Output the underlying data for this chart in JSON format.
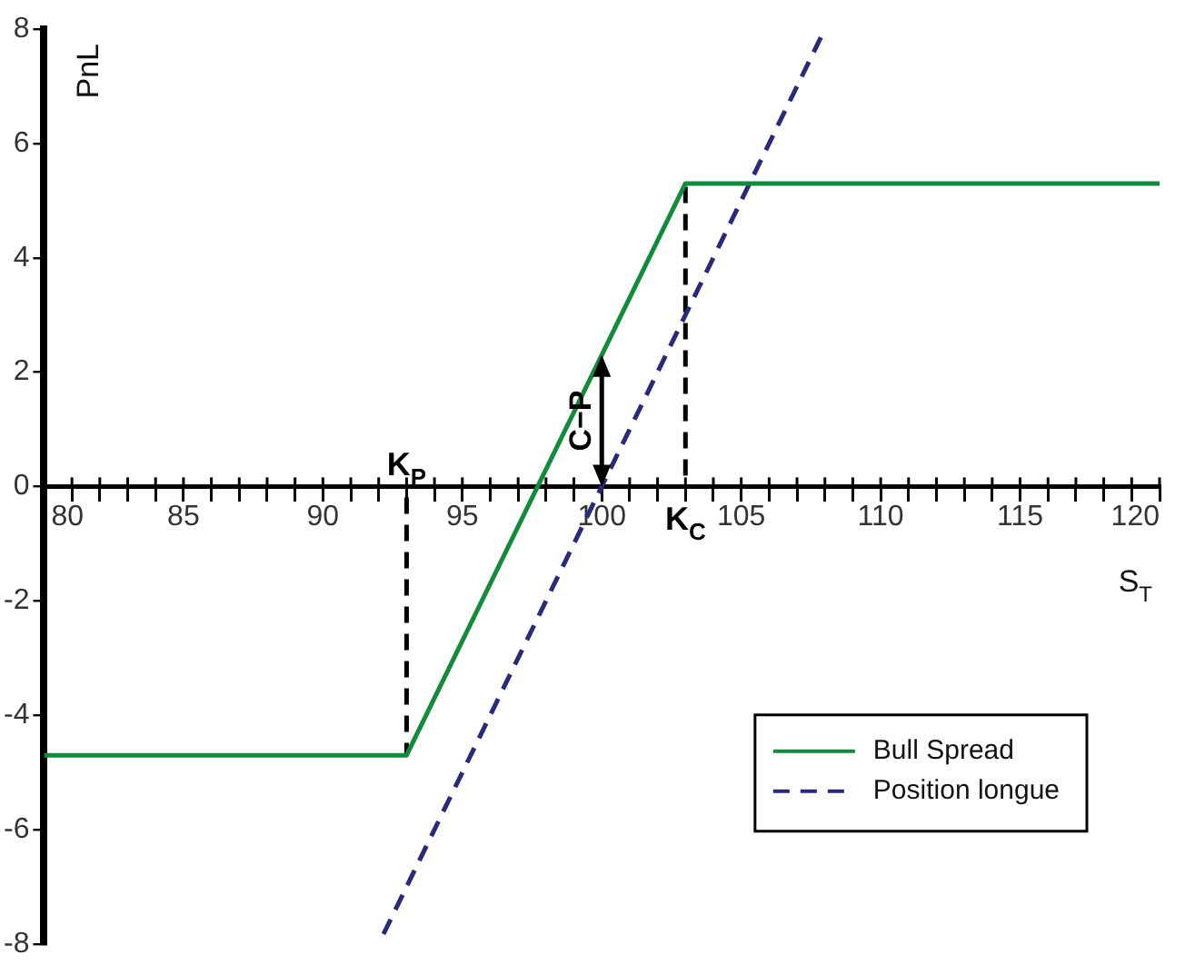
{
  "chart_data": {
    "type": "line",
    "xlabel": "S$_{T}$",
    "ylabel": "PnL",
    "xlim": [
      80,
      120
    ],
    "ylim": [
      -8,
      8
    ],
    "xticks": [
      80,
      {
        "value": 81,
        "label": null
      },
      {
        "value": 82,
        "label": null
      },
      {
        "value": 83,
        "label": null
      },
      {
        "value": 84,
        "label": null
      },
      85,
      {
        "value": 86,
        "label": null
      },
      {
        "value": 87,
        "label": null
      },
      {
        "value": 88,
        "label": null
      },
      {
        "value": 89,
        "label": null
      },
      90,
      {
        "value": 91,
        "label": null
      },
      {
        "value": 92,
        "label": null
      },
      {
        "value": 93,
        "label": null
      },
      {
        "value": 94,
        "label": null
      },
      95,
      {
        "value": 96,
        "label": null
      },
      {
        "value": 97,
        "label": null
      },
      {
        "value": 98,
        "label": null
      },
      {
        "value": 99,
        "label": null
      },
      100,
      {
        "value": 101,
        "label": null
      },
      {
        "value": 102,
        "label": null
      },
      {
        "value": 103,
        "label": null
      },
      {
        "value": 104,
        "label": null
      },
      105,
      {
        "value": 106,
        "label": null
      },
      {
        "value": 107,
        "label": null
      },
      {
        "value": 108,
        "label": null
      },
      {
        "value": 109,
        "label": null
      },
      110,
      {
        "value": 111,
        "label": null
      },
      {
        "value": 112,
        "label": null
      },
      {
        "value": 113,
        "label": null
      },
      {
        "value": 114,
        "label": null
      },
      115,
      {
        "value": 116,
        "label": null
      },
      {
        "value": 117,
        "label": null
      },
      {
        "value": 118,
        "label": null
      },
      {
        "value": 119,
        "label": null
      },
      120
    ],
    "yticks": [
      -8,
      -6,
      -4,
      -2,
      0,
      2,
      4,
      6,
      8
    ],
    "series": [
      {
        "name": "Bull Spread",
        "color": "#138a3c",
        "x": [
          80,
          93,
          103,
          120
        ],
        "values": [
          -4.7,
          -4.7,
          5.3,
          5.3
        ],
        "line_style": "solid"
      },
      {
        "name": "Position longue",
        "color": "#2b2a7a",
        "x": [
          92,
          108
        ],
        "values": [
          -8,
          8
        ],
        "line_style": "dashed"
      },
      {
        "color": "#000000",
        "x": [
          93,
          93
        ],
        "values": [
          0,
          -4.7
        ],
        "line_style": "dashed"
      },
      {
        "color": "#000000",
        "x": [
          103,
          103
        ],
        "values": [
          0,
          5.3
        ],
        "line_style": "dashed"
      }
    ],
    "annotations": [
      {
        "text": "K$_{P}$",
        "x": 93,
        "y": 0
      },
      {
        "text": "K$_{C}$",
        "x": 103,
        "y": 0
      },
      {
        "text": "C−P",
        "x": 100,
        "y": 2.3
      }
    ],
    "legend": "bottom right",
    "grid": false,
    "marker": "none"
  }
}
